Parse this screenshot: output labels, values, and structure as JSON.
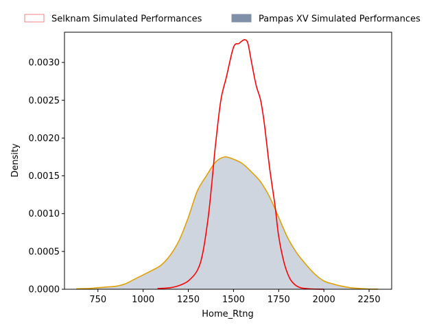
{
  "chart_data": {
    "type": "area",
    "xlabel": "Home_Rtng",
    "ylabel": "Density",
    "xlim": [
      565,
      2375
    ],
    "ylim": [
      0,
      0.0034
    ],
    "x_ticks": [
      750,
      1000,
      1250,
      1500,
      1750,
      2000,
      2250
    ],
    "x_tick_labels": [
      "750",
      "1000",
      "1250",
      "1500",
      "1750",
      "2000",
      "2250"
    ],
    "y_ticks": [
      0,
      0.0005,
      0.001,
      0.0015,
      0.002,
      0.0025,
      0.003
    ],
    "y_tick_labels": [
      "0.0000",
      "0.0005",
      "0.0010",
      "0.0015",
      "0.0020",
      "0.0025",
      "0.0030"
    ],
    "grid": false,
    "legend_position": "top",
    "series": [
      {
        "name": "Selknam Simulated Performances",
        "color": "#ff0000",
        "legend_color": "#f08080",
        "fill": false,
        "x": [
          1080,
          1150,
          1200,
          1250,
          1300,
          1330,
          1360,
          1380,
          1400,
          1430,
          1460,
          1500,
          1530,
          1550,
          1565,
          1580,
          1600,
          1625,
          1650,
          1670,
          1700,
          1730,
          1750,
          1780,
          1810,
          1840,
          1870,
          1900,
          1940,
          2000
        ],
        "y": [
          1e-05,
          2e-05,
          5e-05,
          0.00011,
          0.00025,
          0.00048,
          0.00095,
          0.0014,
          0.0019,
          0.0025,
          0.0028,
          0.0032,
          0.00325,
          0.00329,
          0.0033,
          0.00325,
          0.003,
          0.0027,
          0.0025,
          0.0022,
          0.0016,
          0.0011,
          0.0007,
          0.00035,
          0.00015,
          6e-05,
          2e-05,
          1e-05,
          3e-06,
          5e-07
        ]
      },
      {
        "name": "Pampas XV Simulated Performances",
        "color": "#e0a000",
        "legend_color": "#8090a8",
        "fill": true,
        "fill_color": "#a0acbd",
        "x": [
          630,
          700,
          750,
          800,
          850,
          900,
          950,
          1000,
          1050,
          1100,
          1150,
          1200,
          1250,
          1300,
          1350,
          1400,
          1450,
          1500,
          1550,
          1600,
          1650,
          1700,
          1750,
          1800,
          1850,
          1900,
          1950,
          2000,
          2050,
          2100,
          2150,
          2200,
          2250,
          2300
        ],
        "y": [
          5e-06,
          1e-05,
          2e-05,
          3e-05,
          4e-05,
          7e-05,
          0.00013,
          0.00019,
          0.00025,
          0.00032,
          0.00045,
          0.00065,
          0.00095,
          0.0013,
          0.0015,
          0.00168,
          0.00175,
          0.00172,
          0.00166,
          0.00155,
          0.00142,
          0.00122,
          0.00095,
          0.00068,
          0.00048,
          0.00033,
          0.0002,
          0.00011,
          7e-05,
          4e-05,
          2e-05,
          1e-05,
          3e-06,
          1e-06
        ]
      }
    ]
  }
}
